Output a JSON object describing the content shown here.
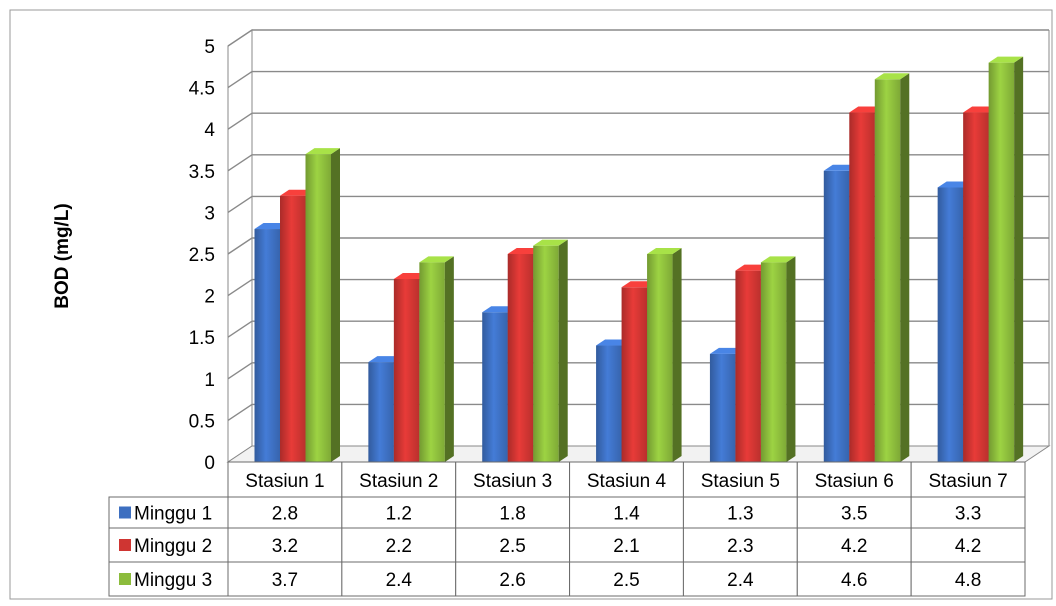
{
  "chart_data": {
    "type": "bar",
    "title": "",
    "xlabel": "",
    "ylabel": "BOD (mg/L)",
    "ylim": [
      0,
      5
    ],
    "yticks": [
      "0",
      "0.5",
      "1",
      "1.5",
      "2",
      "2.5",
      "3",
      "3.5",
      "4",
      "4.5",
      "5"
    ],
    "grid": true,
    "three_d": true,
    "legend_placement": "data-table",
    "categories": [
      "Stasiun 1",
      "Stasiun 2",
      "Stasiun 3",
      "Stasiun 4",
      "Stasiun 5",
      "Stasiun 6",
      "Stasiun 7"
    ],
    "series": [
      {
        "name": "Minggu 1",
        "color": "#3d6fc0",
        "values": [
          2.8,
          1.2,
          1.8,
          1.4,
          1.3,
          3.5,
          3.3
        ],
        "labels": [
          "2.8",
          "1.2",
          "1.8",
          "1.4",
          "1.3",
          "3.5",
          "3.3"
        ]
      },
      {
        "name": "Minggu 2",
        "color": "#cf3532",
        "values": [
          3.2,
          2.2,
          2.5,
          2.1,
          2.3,
          4.2,
          4.2
        ],
        "labels": [
          "3.2",
          "2.2",
          "2.5",
          "2.1",
          "2.3",
          "4.2",
          "4.2"
        ]
      },
      {
        "name": "Minggu 3",
        "color": "#8cbc3c",
        "values": [
          3.7,
          2.4,
          2.6,
          2.5,
          2.4,
          4.6,
          4.8
        ],
        "labels": [
          "3.7",
          "2.4",
          "2.6",
          "2.5",
          "2.4",
          "4.6",
          "4.8"
        ]
      }
    ]
  }
}
